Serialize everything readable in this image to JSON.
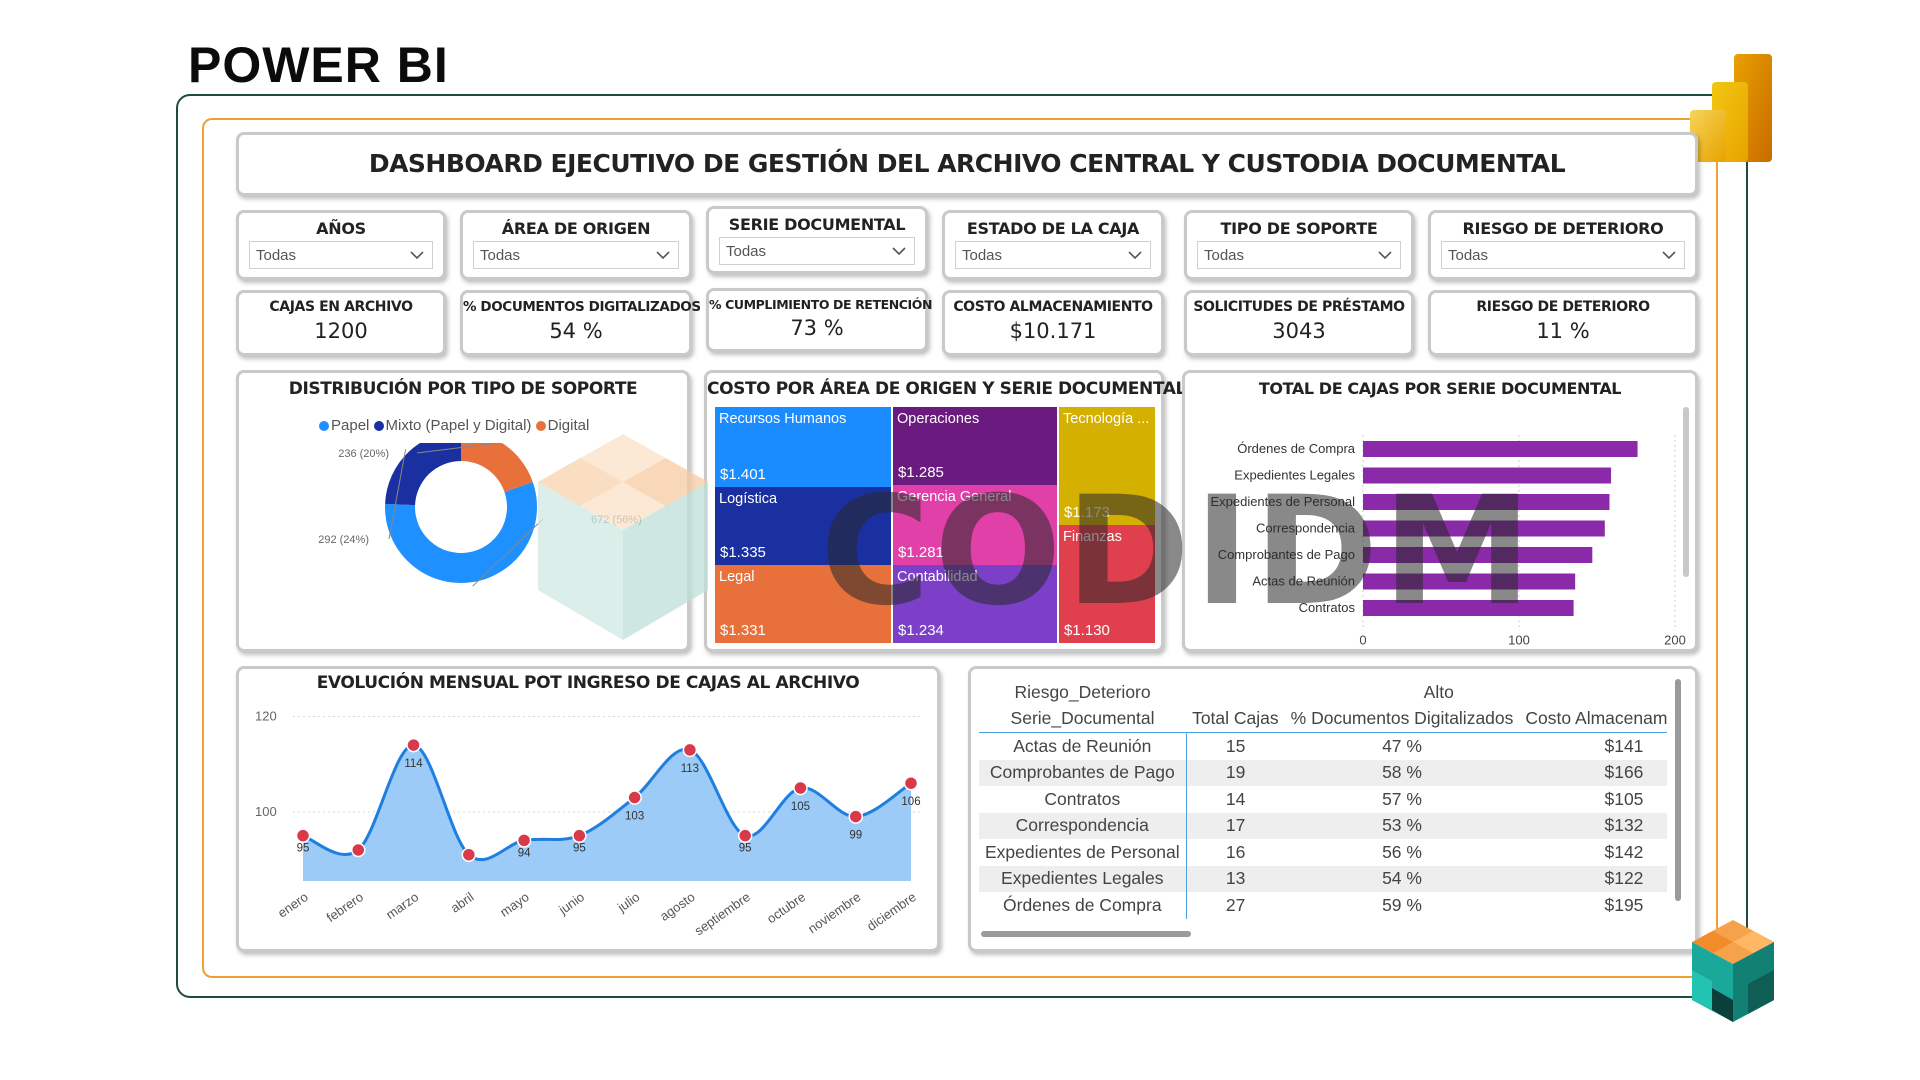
{
  "page_title": "POWER BI",
  "dashboard_title": "DASHBOARD EJECUTIVO DE GESTIÓN DEL ARCHIVO CENTRAL Y CUSTODIA DOCUMENTAL",
  "slicers": [
    {
      "label": "AÑOS",
      "value": "Todas"
    },
    {
      "label": "ÁREA DE ORIGEN",
      "value": "Todas"
    },
    {
      "label": "SERIE DOCUMENTAL",
      "value": "Todas"
    },
    {
      "label": "ESTADO DE LA CAJA",
      "value": "Todas"
    },
    {
      "label": "TIPO DE SOPORTE",
      "value": "Todas"
    },
    {
      "label": "RIESGO DE DETERIORO",
      "value": "Todas"
    }
  ],
  "kpis": [
    {
      "label": "CAJAS EN ARCHIVO",
      "value": "1200"
    },
    {
      "label": "% DOCUMENTOS DIGITALIZADOS",
      "value": "54 %"
    },
    {
      "label": "% CUMPLIMIENTO DE RETENCIÓN",
      "value": "73 %"
    },
    {
      "label": "COSTO ALMACENAMIENTO",
      "value": "$10.171"
    },
    {
      "label": "SOLICITUDES DE PRÉSTAMO",
      "value": "3043"
    },
    {
      "label": "RIESGO DE DETERIORO",
      "value": "11 %"
    }
  ],
  "watermark": "CODIDM",
  "chart_data": [
    {
      "type": "pie",
      "title": "DISTRIBUCIÓN POR TIPO DE SOPORTE",
      "legend": [
        "Papel",
        "Mixto (Papel y Digital)",
        "Digital"
      ],
      "colors": [
        "#1e90ff",
        "#1a2fa0",
        "#e8703a"
      ],
      "values": [
        672,
        292,
        236
      ],
      "labels": [
        "672 (56%)",
        "292 (24%)",
        "236 (20%)"
      ]
    },
    {
      "type": "heatmap",
      "title": "COSTO POR ÁREA DE ORIGEN Y SERIE DOCUMENTAL",
      "cells": [
        {
          "name": "Recursos Humanos",
          "value": "$1.401",
          "color": "#1a8cff"
        },
        {
          "name": "Logística",
          "value": "$1.335",
          "color": "#1a2fa0"
        },
        {
          "name": "Legal",
          "value": "$1.331",
          "color": "#e8703a"
        },
        {
          "name": "Operaciones",
          "value": "$1.285",
          "color": "#6b1a80"
        },
        {
          "name": "Gerencia General",
          "value": "$1.281",
          "color": "#e040a8"
        },
        {
          "name": "Contabilidad",
          "value": "$1.234",
          "color": "#7b3fc8"
        },
        {
          "name": "Tecnología ...",
          "value": "$1.173",
          "color": "#d4b000"
        },
        {
          "name": "Finanzas",
          "value": "$1.130",
          "color": "#e0404e"
        }
      ]
    },
    {
      "type": "bar",
      "orientation": "horizontal",
      "title": "TOTAL DE CAJAS POR SERIE DOCUMENTAL",
      "categories": [
        "Órdenes de Compra",
        "Expedientes Legales",
        "Expedientes de Personal",
        "Correspondencia",
        "Comprobantes de Pago",
        "Actas de Reunión",
        "Contratos"
      ],
      "values": [
        176,
        159,
        158,
        155,
        147,
        136,
        135
      ],
      "xlim": [
        0,
        200
      ],
      "xticks": [
        "0",
        "100",
        "200"
      ],
      "color": "#8b2aa8"
    },
    {
      "type": "area",
      "title": "EVOLUCIÓN MENSUAL POT INGRESO DE CAJAS AL ARCHIVO",
      "categories": [
        "enero",
        "febrero",
        "marzo",
        "abril",
        "mayo",
        "junio",
        "julio",
        "agosto",
        "septiembre",
        "octubre",
        "noviembre",
        "diciembre"
      ],
      "values": [
        95,
        92,
        114,
        91,
        94,
        95,
        103,
        113,
        95,
        105,
        99,
        106
      ],
      "data_labels": [
        "95",
        "",
        "114",
        "",
        "94",
        "95",
        "103",
        "113",
        "95",
        "105",
        "99",
        "106"
      ],
      "ylim": [
        88,
        122
      ],
      "yticks": [
        "100",
        "120"
      ],
      "color": "#1e7fe0",
      "fill": "#9ccbf7",
      "marker_color": "#d93a4a"
    }
  ],
  "matrix": {
    "header_row1": [
      "Riesgo_Deterioro",
      "Alto"
    ],
    "columns": [
      "Serie_Documental",
      "Total Cajas",
      "% Documentos Digitalizados",
      "Costo Almacenam"
    ],
    "rows": [
      [
        "Actas de Reunión",
        "15",
        "47 %",
        "$141"
      ],
      [
        "Comprobantes de Pago",
        "19",
        "58 %",
        "$166"
      ],
      [
        "Contratos",
        "14",
        "57 %",
        "$105"
      ],
      [
        "Correspondencia",
        "17",
        "53 %",
        "$132"
      ],
      [
        "Expedientes de Personal",
        "16",
        "56 %",
        "$142"
      ],
      [
        "Expedientes Legales",
        "13",
        "54 %",
        "$122"
      ],
      [
        "Órdenes de Compra",
        "27",
        "59 %",
        "$195"
      ]
    ]
  }
}
